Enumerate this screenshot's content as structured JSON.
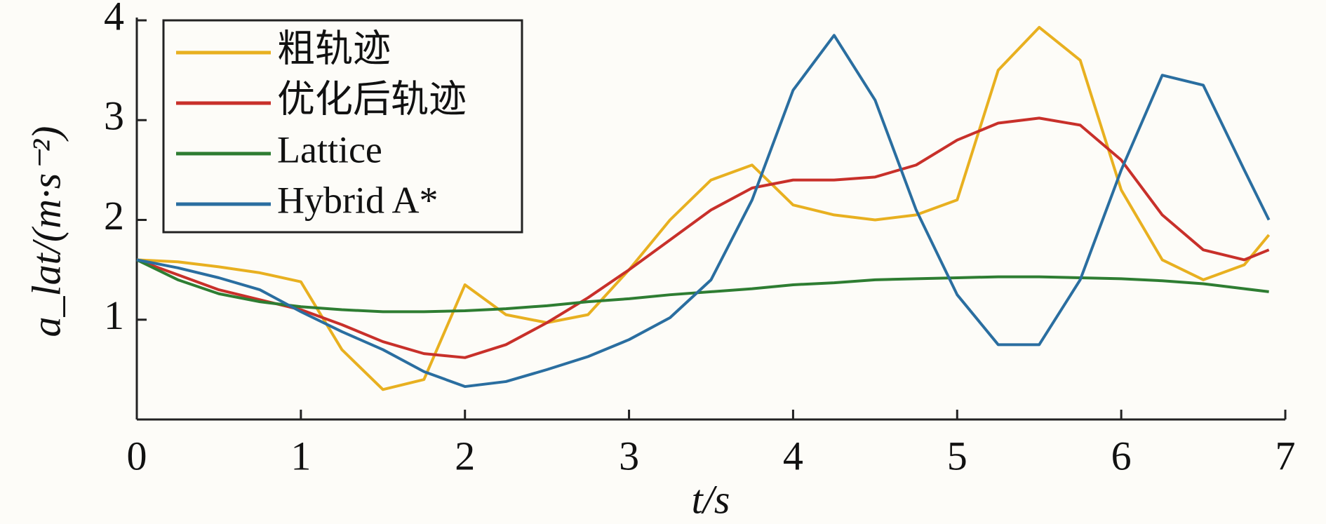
{
  "chart_data": {
    "type": "line",
    "xlabel": "t/s",
    "ylabel": "a_lat/(m·s⁻²)",
    "x": [
      0,
      0.25,
      0.5,
      0.75,
      1.0,
      1.25,
      1.5,
      1.75,
      2.0,
      2.25,
      2.5,
      2.75,
      3.0,
      3.25,
      3.5,
      3.75,
      4.0,
      4.25,
      4.5,
      4.75,
      5.0,
      5.25,
      5.5,
      5.75,
      6.0,
      6.25,
      6.5,
      6.75,
      6.9
    ],
    "series": [
      {
        "name": "粗轨迹",
        "color": "#e8b020",
        "values": [
          1.6,
          1.58,
          1.53,
          1.47,
          1.38,
          0.7,
          0.3,
          0.4,
          1.35,
          1.05,
          0.97,
          1.05,
          1.5,
          2.0,
          2.4,
          2.55,
          2.15,
          2.05,
          2.0,
          2.05,
          2.2,
          3.5,
          3.93,
          3.6,
          2.3,
          1.6,
          1.4,
          1.55,
          1.85
        ]
      },
      {
        "name": "优化后轨迹",
        "color": "#c8302a",
        "values": [
          1.6,
          1.45,
          1.3,
          1.2,
          1.1,
          0.95,
          0.78,
          0.66,
          0.62,
          0.75,
          0.97,
          1.22,
          1.5,
          1.8,
          2.1,
          2.32,
          2.4,
          2.4,
          2.43,
          2.55,
          2.8,
          2.97,
          3.02,
          2.95,
          2.6,
          2.05,
          1.7,
          1.6,
          1.7
        ]
      },
      {
        "name": "Lattice",
        "color": "#2e7d32",
        "values": [
          1.6,
          1.4,
          1.26,
          1.18,
          1.13,
          1.1,
          1.08,
          1.08,
          1.09,
          1.11,
          1.14,
          1.18,
          1.21,
          1.25,
          1.28,
          1.31,
          1.35,
          1.37,
          1.4,
          1.41,
          1.42,
          1.43,
          1.43,
          1.42,
          1.41,
          1.39,
          1.36,
          1.31,
          1.28
        ]
      },
      {
        "name": "Hybrid A*",
        "color": "#2a6ea0",
        "values": [
          1.6,
          1.52,
          1.42,
          1.3,
          1.08,
          0.88,
          0.7,
          0.48,
          0.33,
          0.38,
          0.5,
          0.63,
          0.8,
          1.02,
          1.4,
          2.2,
          3.3,
          3.85,
          3.2,
          2.1,
          1.25,
          0.75,
          0.75,
          1.4,
          2.5,
          3.45,
          3.35,
          2.5,
          2.0
        ]
      }
    ],
    "xlim": [
      0,
      7
    ],
    "xticks": [
      0,
      1,
      2,
      3,
      4,
      5,
      6,
      7
    ],
    "ylim": [
      0,
      4
    ],
    "yticks": [
      1,
      2,
      3,
      4
    ],
    "legend": "upper left"
  }
}
